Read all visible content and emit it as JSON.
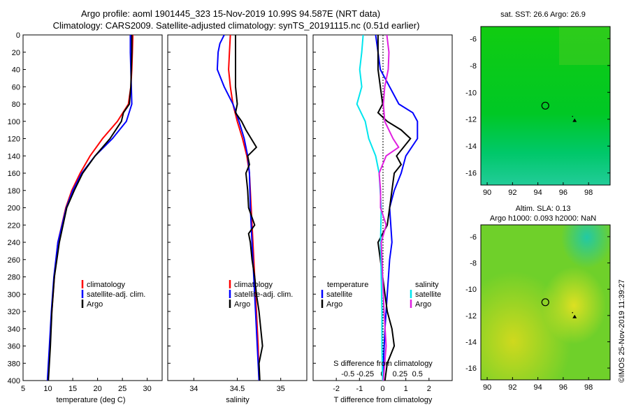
{
  "title": {
    "line1": "Argo profile: aoml 1901445_323 15-Nov-2019 10.99S 94.587E (NRT data)",
    "line2": "Climatology: CARS2009. Satellite-adjusted climatology: synTS_20191115.nc (0.51d earlier)"
  },
  "watermark": "©IMOS 25-Nov-2019 11:39:27",
  "colors": {
    "climatology": "#ff0000",
    "satellite": "#0000ff",
    "argo": "#000000",
    "sal_sat": "#00e5ee",
    "sal_argo": "#e020e0",
    "map_green": "#00cc22",
    "map_cyan": "#22ccaa",
    "map_yellow": "#cccc22"
  },
  "chart_data": [
    {
      "type": "line",
      "name": "temperature",
      "xlabel": "temperature (deg C)",
      "xlim": [
        5,
        33
      ],
      "xticks": [
        "5",
        "10",
        "15",
        "20",
        "25",
        "30"
      ],
      "xtick_values": [
        5,
        10,
        15,
        20,
        25,
        30
      ],
      "ylim": [
        0,
        400
      ],
      "yticks": [
        "0",
        "20",
        "40",
        "60",
        "80",
        "100",
        "120",
        "140",
        "160",
        "180",
        "200",
        "220",
        "240",
        "260",
        "280",
        "300",
        "320",
        "340",
        "360",
        "380",
        "400"
      ],
      "ytick_values": [
        0,
        20,
        40,
        60,
        80,
        100,
        120,
        140,
        160,
        180,
        200,
        220,
        240,
        260,
        280,
        300,
        320,
        340,
        360,
        380,
        400
      ],
      "legend": [
        "climatology",
        "satellite-adj. clim.",
        "Argo"
      ],
      "series": [
        {
          "name": "climatology",
          "depth": [
            0,
            20,
            40,
            60,
            80,
            100,
            120,
            140,
            160,
            180,
            200,
            240,
            280,
            320,
            360,
            400
          ],
          "values": [
            27.1,
            27.0,
            26.9,
            26.7,
            26.2,
            24.0,
            21.0,
            18.5,
            16.5,
            14.8,
            13.6,
            12.0,
            11.3,
            10.8,
            10.4,
            10.0
          ]
        },
        {
          "name": "satellite-adj. clim.",
          "depth": [
            0,
            20,
            40,
            60,
            80,
            100,
            120,
            140,
            160,
            180,
            200,
            240,
            280,
            320,
            360,
            400
          ],
          "values": [
            26.6,
            26.6,
            26.7,
            26.8,
            26.9,
            25.8,
            23.0,
            19.5,
            16.8,
            15.0,
            13.7,
            12.0,
            11.2,
            10.7,
            10.3,
            9.9
          ]
        },
        {
          "name": "Argo",
          "depth": [
            0,
            20,
            40,
            60,
            80,
            90,
            100,
            120,
            140,
            160,
            180,
            200,
            240,
            280,
            320,
            360,
            400
          ],
          "values": [
            26.9,
            26.9,
            26.8,
            26.7,
            26.4,
            25.2,
            24.8,
            22.5,
            19.5,
            17.0,
            15.3,
            13.8,
            12.3,
            11.3,
            10.8,
            10.5,
            10.1
          ]
        }
      ]
    },
    {
      "type": "line",
      "name": "salinity",
      "xlabel": "salinity",
      "xlim": [
        33.7,
        35.3
      ],
      "xticks": [
        "34",
        "34.5",
        "35"
      ],
      "xtick_values": [
        34,
        34.5,
        35
      ],
      "ylim": [
        0,
        400
      ],
      "legend": [
        "climatology",
        "satellite-adj. clim.",
        "Argo"
      ],
      "series": [
        {
          "name": "climatology",
          "depth": [
            0,
            20,
            40,
            60,
            80,
            100,
            120,
            140,
            160,
            200,
            240,
            280,
            320,
            360,
            400
          ],
          "values": [
            34.42,
            34.41,
            34.4,
            34.42,
            34.45,
            34.5,
            34.56,
            34.61,
            34.64,
            34.66,
            34.68,
            34.7,
            34.72,
            34.74,
            34.75
          ]
        },
        {
          "name": "satellite-adj. clim.",
          "depth": [
            0,
            10,
            20,
            40,
            60,
            80,
            100,
            120,
            140,
            160,
            200,
            240,
            280,
            320,
            360,
            400
          ],
          "values": [
            34.35,
            34.3,
            34.28,
            34.27,
            34.35,
            34.45,
            34.52,
            34.58,
            34.62,
            34.64,
            34.65,
            34.67,
            34.69,
            34.71,
            34.73,
            34.75
          ]
        },
        {
          "name": "Argo",
          "depth": [
            0,
            20,
            40,
            60,
            80,
            90,
            100,
            110,
            120,
            130,
            140,
            150,
            160,
            180,
            200,
            220,
            230,
            240,
            260,
            280,
            300,
            320,
            340,
            360,
            380,
            400
          ],
          "values": [
            34.48,
            34.48,
            34.48,
            34.48,
            34.5,
            34.48,
            34.55,
            34.6,
            34.66,
            34.72,
            34.62,
            34.64,
            34.6,
            34.62,
            34.63,
            34.7,
            34.63,
            34.65,
            34.67,
            34.7,
            34.72,
            34.75,
            34.77,
            34.79,
            34.75,
            34.76
          ]
        }
      ]
    },
    {
      "type": "line",
      "name": "difference",
      "xlabel": "T difference from climatology",
      "xlabel2": "S difference from climatology",
      "xlim": [
        -3,
        3
      ],
      "xticks": [
        "-2",
        "-1",
        "0",
        "1",
        "2"
      ],
      "xtick_values": [
        -2,
        -1,
        0,
        1,
        2
      ],
      "xticks2": [
        "-0.5",
        "-0.25",
        "0",
        "0.25",
        "0.5"
      ],
      "ylim": [
        0,
        400
      ],
      "legend_left_title": "temperature",
      "legend_right_title": "salinity",
      "legend": [
        "satellite",
        "Argo",
        "satellite",
        "Argo"
      ],
      "series": [
        {
          "name": "T satellite",
          "depth": [
            0,
            20,
            40,
            60,
            80,
            90,
            100,
            120,
            140,
            160,
            180,
            200,
            240,
            260,
            300,
            340,
            400
          ],
          "values": [
            -0.3,
            -0.2,
            -0.1,
            0.3,
            0.7,
            1.3,
            1.5,
            1.5,
            1.0,
            0.8,
            0.5,
            0.3,
            0.4,
            0.3,
            0.2,
            0.1,
            0.0
          ]
        },
        {
          "name": "T Argo",
          "depth": [
            0,
            20,
            40,
            60,
            80,
            90,
            100,
            110,
            120,
            140,
            150,
            160,
            180,
            200,
            220,
            240,
            260,
            280,
            300,
            320,
            340,
            360,
            380,
            400
          ],
          "values": [
            -0.2,
            -0.2,
            -0.2,
            -0.1,
            0.0,
            -0.2,
            0.2,
            0.8,
            1.2,
            0.6,
            0.8,
            0.5,
            0.4,
            0.3,
            0.2,
            -0.2,
            -0.1,
            0.0,
            0.1,
            0.2,
            0.4,
            0.5,
            0.2,
            0.1
          ]
        },
        {
          "name": "S satellite",
          "depth": [
            0,
            20,
            40,
            60,
            80,
            100,
            120,
            140,
            160,
            200,
            240,
            280,
            320,
            360,
            400
          ],
          "values": [
            -0.28,
            -0.3,
            -0.33,
            -0.3,
            -0.37,
            -0.25,
            -0.2,
            -0.1,
            -0.05,
            -0.02,
            -0.03,
            -0.02,
            -0.01,
            -0.01,
            0.0
          ]
        },
        {
          "name": "S Argo",
          "depth": [
            0,
            20,
            40,
            60,
            80,
            100,
            120,
            130,
            140,
            150,
            160,
            180,
            200,
            220,
            240,
            280,
            320,
            360,
            400
          ],
          "values": [
            0.06,
            0.09,
            0.08,
            0.03,
            0.01,
            0.03,
            0.15,
            0.23,
            0.05,
            0.0,
            -0.05,
            -0.03,
            -0.03,
            0.05,
            -0.02,
            0.0,
            0.02,
            0.05,
            0.01
          ]
        }
      ]
    },
    {
      "type": "heatmap",
      "name": "sst-map",
      "title": "sat. SST: 26.6 Argo: 26.9",
      "xticks": [
        "90",
        "92",
        "94",
        "96",
        "98"
      ],
      "xtick_values": [
        90,
        92,
        94,
        96,
        98
      ],
      "yticks": [
        "-6",
        "-8",
        "-10",
        "-12",
        "-14",
        "-16"
      ],
      "ytick_values": [
        -6,
        -8,
        -10,
        -12,
        -14,
        -16
      ],
      "xlim": [
        89.5,
        99.7
      ],
      "ylim": [
        -16.9,
        -5.1
      ],
      "marker": {
        "lon": 94.587,
        "lat": -10.99
      },
      "float_track": {
        "lon": 96.9,
        "lat": -12.1
      }
    },
    {
      "type": "heatmap",
      "name": "sla-map",
      "title1": "Altim. SLA: 0.13",
      "title2": "Argo h1000: 0.093 h2000: NaN",
      "xticks": [
        "90",
        "92",
        "94",
        "96",
        "98"
      ],
      "xtick_values": [
        90,
        92,
        94,
        96,
        98
      ],
      "yticks": [
        "-6",
        "-8",
        "-10",
        "-12",
        "-14",
        "-16"
      ],
      "ytick_values": [
        -6,
        -8,
        -10,
        -12,
        -14,
        -16
      ],
      "xlim": [
        89.5,
        99.7
      ],
      "ylim": [
        -16.9,
        -5.1
      ],
      "marker": {
        "lon": 94.587,
        "lat": -10.99
      },
      "float_track": {
        "lon": 96.9,
        "lat": -12.1
      }
    }
  ]
}
